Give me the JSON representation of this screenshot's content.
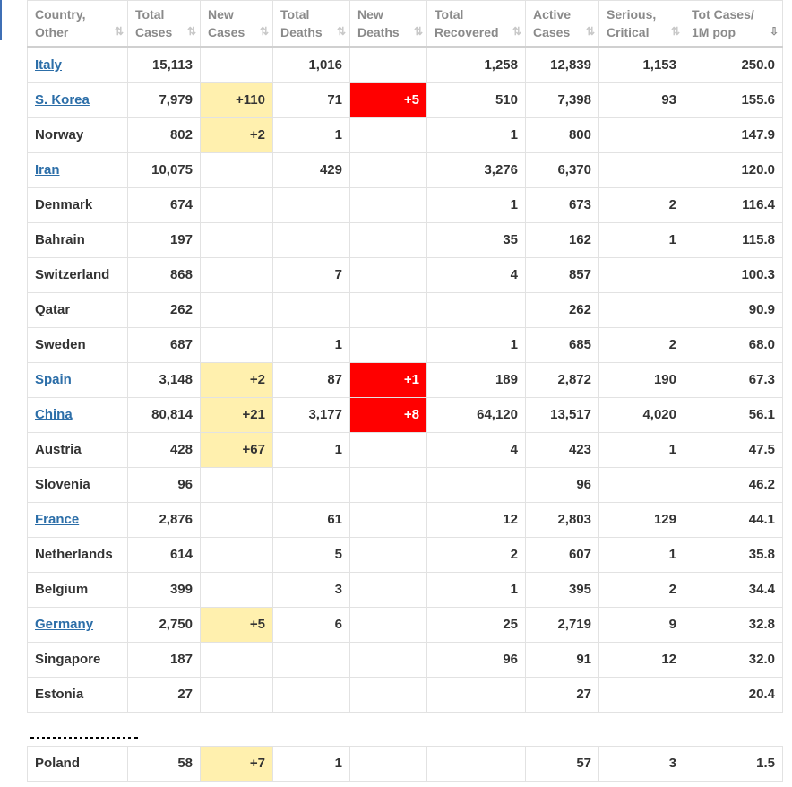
{
  "headers": [
    {
      "line1": "Country,",
      "line2": "Other",
      "sort": "⇅"
    },
    {
      "line1": "Total",
      "line2": "Cases",
      "sort": "⇅"
    },
    {
      "line1": "New",
      "line2": "Cases",
      "sort": "⇅"
    },
    {
      "line1": "Total",
      "line2": "Deaths",
      "sort": "⇅"
    },
    {
      "line1": "New",
      "line2": "Deaths",
      "sort": "⇅"
    },
    {
      "line1": "Total",
      "line2": "Recovered",
      "sort": "⇅"
    },
    {
      "line1": "Active",
      "line2": "Cases",
      "sort": "⇅"
    },
    {
      "line1": "Serious,",
      "line2": "Critical",
      "sort": "⇅"
    },
    {
      "line1": "Tot Cases/",
      "line2": "1M pop",
      "sort": "⇩"
    }
  ],
  "rows": [
    {
      "country": "Italy",
      "link": true,
      "total_cases": "15,113",
      "new_cases": "",
      "total_deaths": "1,016",
      "new_deaths": "",
      "total_recovered": "1,258",
      "active_cases": "12,839",
      "serious_critical": "1,153",
      "per_million": "250.0"
    },
    {
      "country": "S. Korea",
      "link": true,
      "total_cases": "7,979",
      "new_cases": "+110",
      "total_deaths": "71",
      "new_deaths": "+5",
      "total_recovered": "510",
      "active_cases": "7,398",
      "serious_critical": "93",
      "per_million": "155.6"
    },
    {
      "country": "Norway",
      "link": false,
      "total_cases": "802",
      "new_cases": "+2",
      "total_deaths": "1",
      "new_deaths": "",
      "total_recovered": "1",
      "active_cases": "800",
      "serious_critical": "",
      "per_million": "147.9"
    },
    {
      "country": "Iran",
      "link": true,
      "total_cases": "10,075",
      "new_cases": "",
      "total_deaths": "429",
      "new_deaths": "",
      "total_recovered": "3,276",
      "active_cases": "6,370",
      "serious_critical": "",
      "per_million": "120.0"
    },
    {
      "country": "Denmark",
      "link": false,
      "total_cases": "674",
      "new_cases": "",
      "total_deaths": "",
      "new_deaths": "",
      "total_recovered": "1",
      "active_cases": "673",
      "serious_critical": "2",
      "per_million": "116.4"
    },
    {
      "country": "Bahrain",
      "link": false,
      "total_cases": "197",
      "new_cases": "",
      "total_deaths": "",
      "new_deaths": "",
      "total_recovered": "35",
      "active_cases": "162",
      "serious_critical": "1",
      "per_million": "115.8"
    },
    {
      "country": "Switzerland",
      "link": false,
      "total_cases": "868",
      "new_cases": "",
      "total_deaths": "7",
      "new_deaths": "",
      "total_recovered": "4",
      "active_cases": "857",
      "serious_critical": "",
      "per_million": "100.3"
    },
    {
      "country": "Qatar",
      "link": false,
      "total_cases": "262",
      "new_cases": "",
      "total_deaths": "",
      "new_deaths": "",
      "total_recovered": "",
      "active_cases": "262",
      "serious_critical": "",
      "per_million": "90.9"
    },
    {
      "country": "Sweden",
      "link": false,
      "total_cases": "687",
      "new_cases": "",
      "total_deaths": "1",
      "new_deaths": "",
      "total_recovered": "1",
      "active_cases": "685",
      "serious_critical": "2",
      "per_million": "68.0"
    },
    {
      "country": "Spain",
      "link": true,
      "total_cases": "3,148",
      "new_cases": "+2",
      "total_deaths": "87",
      "new_deaths": "+1",
      "total_recovered": "189",
      "active_cases": "2,872",
      "serious_critical": "190",
      "per_million": "67.3"
    },
    {
      "country": "China",
      "link": true,
      "total_cases": "80,814",
      "new_cases": "+21",
      "total_deaths": "3,177",
      "new_deaths": "+8",
      "total_recovered": "64,120",
      "active_cases": "13,517",
      "serious_critical": "4,020",
      "per_million": "56.1"
    },
    {
      "country": "Austria",
      "link": false,
      "total_cases": "428",
      "new_cases": "+67",
      "total_deaths": "1",
      "new_deaths": "",
      "total_recovered": "4",
      "active_cases": "423",
      "serious_critical": "1",
      "per_million": "47.5"
    },
    {
      "country": "Slovenia",
      "link": false,
      "total_cases": "96",
      "new_cases": "",
      "total_deaths": "",
      "new_deaths": "",
      "total_recovered": "",
      "active_cases": "96",
      "serious_critical": "",
      "per_million": "46.2"
    },
    {
      "country": "France",
      "link": true,
      "total_cases": "2,876",
      "new_cases": "",
      "total_deaths": "61",
      "new_deaths": "",
      "total_recovered": "12",
      "active_cases": "2,803",
      "serious_critical": "129",
      "per_million": "44.1"
    },
    {
      "country": "Netherlands",
      "link": false,
      "total_cases": "614",
      "new_cases": "",
      "total_deaths": "5",
      "new_deaths": "",
      "total_recovered": "2",
      "active_cases": "607",
      "serious_critical": "1",
      "per_million": "35.8"
    },
    {
      "country": "Belgium",
      "link": false,
      "total_cases": "399",
      "new_cases": "",
      "total_deaths": "3",
      "new_deaths": "",
      "total_recovered": "1",
      "active_cases": "395",
      "serious_critical": "2",
      "per_million": "34.4"
    },
    {
      "country": "Germany",
      "link": true,
      "total_cases": "2,750",
      "new_cases": "+5",
      "total_deaths": "6",
      "new_deaths": "",
      "total_recovered": "25",
      "active_cases": "2,719",
      "serious_critical": "9",
      "per_million": "32.8"
    },
    {
      "country": "Singapore",
      "link": false,
      "total_cases": "187",
      "new_cases": "",
      "total_deaths": "",
      "new_deaths": "",
      "total_recovered": "96",
      "active_cases": "91",
      "serious_critical": "12",
      "per_million": "32.0"
    },
    {
      "country": "Estonia",
      "link": false,
      "total_cases": "27",
      "new_cases": "",
      "total_deaths": "",
      "new_deaths": "",
      "total_recovered": "",
      "active_cases": "27",
      "serious_critical": "",
      "per_million": "20.4"
    }
  ],
  "after_gap_rows": [
    {
      "country": "Poland",
      "link": false,
      "total_cases": "58",
      "new_cases": "+7",
      "total_deaths": "1",
      "new_deaths": "",
      "total_recovered": "",
      "active_cases": "57",
      "serious_critical": "3",
      "per_million": "1.5"
    }
  ],
  "colors": {
    "new_cases_highlight": "#fff0ae",
    "new_deaths_highlight": "#ff0000",
    "link": "#2c6ea8"
  }
}
